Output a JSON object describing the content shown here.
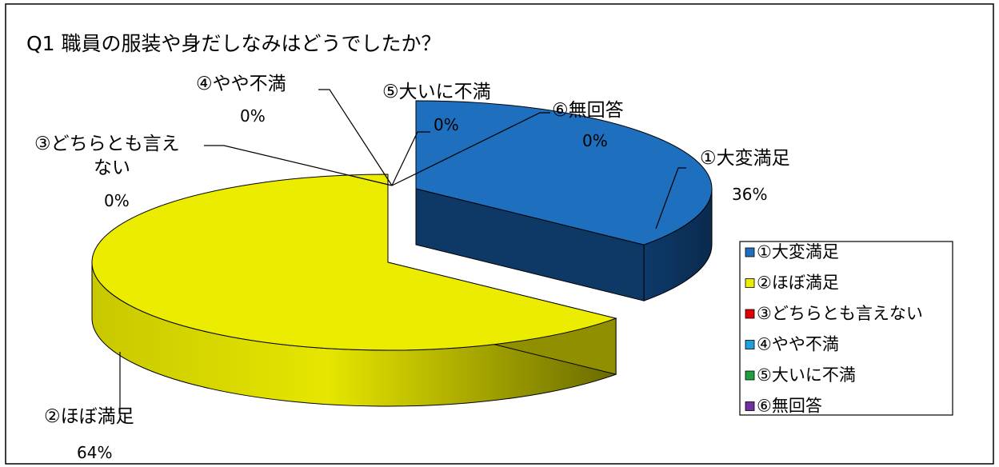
{
  "chart_data": {
    "type": "pie",
    "style": "3d-exploded",
    "title": "Q1 職員の服装や身だしなみはどうでしたか？",
    "categories": [
      "①大変満足",
      "②ほぼ満足",
      "③どちらとも言えない",
      "④やや不満",
      "⑤大いに不満",
      "⑥無回答"
    ],
    "values": [
      36,
      64,
      0,
      0,
      0,
      0
    ],
    "value_labels": [
      "36%",
      "64%",
      "0%",
      "0%",
      "0%",
      "0%"
    ],
    "data_labels": [
      {
        "lines": [
          "①大変満足"
        ],
        "pct": "36%"
      },
      {
        "lines": [
          "②ほぼ満足"
        ],
        "pct": "64%"
      },
      {
        "lines": [
          "③どちらとも言え",
          "ない"
        ],
        "pct": "0%"
      },
      {
        "lines": [
          "④やや不満"
        ],
        "pct": "0%"
      },
      {
        "lines": [
          "⑤大いに不満"
        ],
        "pct": "0%"
      },
      {
        "lines": [
          "⑥無回答"
        ],
        "pct": "0%"
      }
    ],
    "colors": [
      "#1f6fbf",
      "#ecec00",
      "#e00000",
      "#1fa0d8",
      "#1f9f3f",
      "#7030a0"
    ],
    "side_colors": [
      "#0e3866",
      "#8f8f00"
    ],
    "legend": {
      "position": "right",
      "entries": [
        "①大変満足",
        "②ほぼ満足",
        "③どちらとも言えない",
        "④やや不満",
        "⑤大いに不満",
        "⑥無回答"
      ]
    }
  }
}
